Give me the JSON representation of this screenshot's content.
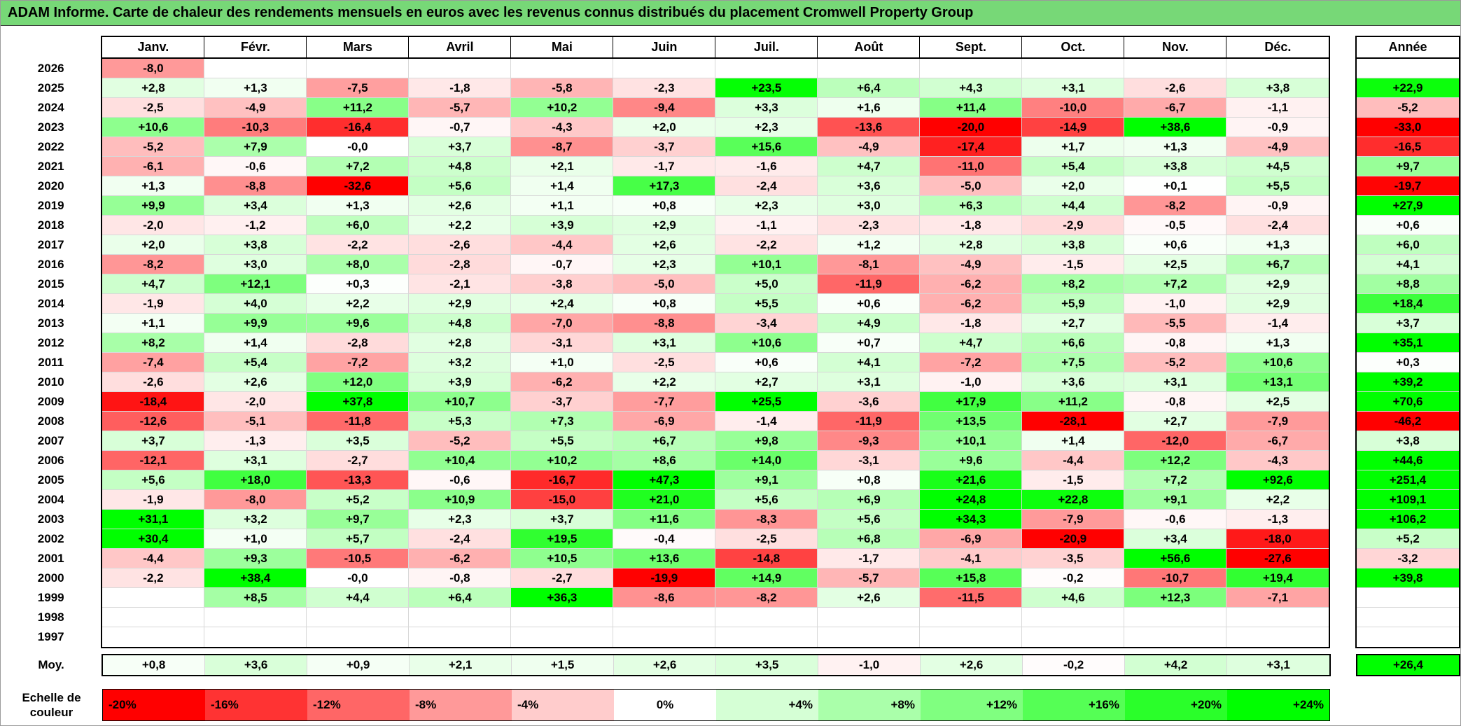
{
  "title": "ADAM Informe. Carte de chaleur des rendements mensuels en euros avec les revenus connus distribués du placement Cromwell Property Group",
  "chart_data": {
    "type": "heatmap",
    "unit": "%",
    "columns": [
      "Janv.",
      "Févr.",
      "Mars",
      "Avril",
      "Mai",
      "Juin",
      "Juil.",
      "Août",
      "Sept.",
      "Oct.",
      "Nov.",
      "Déc."
    ],
    "annee_header": "Année",
    "rows": [
      {
        "year": "2026",
        "cells": [
          "-8,0",
          "",
          "",
          "",
          "",
          "",
          "",
          "",
          "",
          "",
          "",
          ""
        ],
        "annee": ""
      },
      {
        "year": "2025",
        "cells": [
          "+2,8",
          "+1,3",
          "-7,5",
          "-1,8",
          "-5,8",
          "-2,3",
          "+23,5",
          "+6,4",
          "+4,3",
          "+3,1",
          "-2,6",
          "+3,8"
        ],
        "annee": "+22,9"
      },
      {
        "year": "2024",
        "cells": [
          "-2,5",
          "-4,9",
          "+11,2",
          "-5,7",
          "+10,2",
          "-9,4",
          "+3,3",
          "+1,6",
          "+11,4",
          "-10,0",
          "-6,7",
          "-1,1"
        ],
        "annee": "-5,2"
      },
      {
        "year": "2023",
        "cells": [
          "+10,6",
          "-10,3",
          "-16,4",
          "-0,7",
          "-4,3",
          "+2,0",
          "+2,3",
          "-13,6",
          "-20,0",
          "-14,9",
          "+38,6",
          "-0,9"
        ],
        "annee": "-33,0"
      },
      {
        "year": "2022",
        "cells": [
          "-5,2",
          "+7,9",
          "-0,0",
          "+3,7",
          "-8,7",
          "-3,7",
          "+15,6",
          "-4,9",
          "-17,4",
          "+1,7",
          "+1,3",
          "-4,9"
        ],
        "annee": "-16,5"
      },
      {
        "year": "2021",
        "cells": [
          "-6,1",
          "-0,6",
          "+7,2",
          "+4,8",
          "+2,1",
          "-1,7",
          "-1,6",
          "+4,7",
          "-11,0",
          "+5,4",
          "+3,8",
          "+4,5"
        ],
        "annee": "+9,7"
      },
      {
        "year": "2020",
        "cells": [
          "+1,3",
          "-8,8",
          "-32,6",
          "+5,6",
          "+1,4",
          "+17,3",
          "-2,4",
          "+3,6",
          "-5,0",
          "+2,0",
          "+0,1",
          "+5,5"
        ],
        "annee": "-19,7"
      },
      {
        "year": "2019",
        "cells": [
          "+9,9",
          "+3,4",
          "+1,3",
          "+2,6",
          "+1,1",
          "+0,8",
          "+2,3",
          "+3,0",
          "+6,3",
          "+4,4",
          "-8,2",
          "-0,9"
        ],
        "annee": "+27,9"
      },
      {
        "year": "2018",
        "cells": [
          "-2,0",
          "-1,2",
          "+6,0",
          "+2,2",
          "+3,9",
          "+2,9",
          "-1,1",
          "-2,3",
          "-1,8",
          "-2,9",
          "-0,5",
          "-2,4"
        ],
        "annee": "+0,6"
      },
      {
        "year": "2017",
        "cells": [
          "+2,0",
          "+3,8",
          "-2,2",
          "-2,6",
          "-4,4",
          "+2,6",
          "-2,2",
          "+1,2",
          "+2,8",
          "+3,8",
          "+0,6",
          "+1,3"
        ],
        "annee": "+6,0"
      },
      {
        "year": "2016",
        "cells": [
          "-8,2",
          "+3,0",
          "+8,0",
          "-2,8",
          "-0,7",
          "+2,3",
          "+10,1",
          "-8,1",
          "-4,9",
          "-1,5",
          "+2,5",
          "+6,7"
        ],
        "annee": "+4,1"
      },
      {
        "year": "2015",
        "cells": [
          "+4,7",
          "+12,1",
          "+0,3",
          "-2,1",
          "-3,8",
          "-5,0",
          "+5,0",
          "-11,9",
          "-6,2",
          "+8,2",
          "+7,2",
          "+2,9"
        ],
        "annee": "+8,8"
      },
      {
        "year": "2014",
        "cells": [
          "-1,9",
          "+4,0",
          "+2,2",
          "+2,9",
          "+2,4",
          "+0,8",
          "+5,5",
          "+0,6",
          "-6,2",
          "+5,9",
          "-1,0",
          "+2,9"
        ],
        "annee": "+18,4"
      },
      {
        "year": "2013",
        "cells": [
          "+1,1",
          "+9,9",
          "+9,6",
          "+4,8",
          "-7,0",
          "-8,8",
          "-3,4",
          "+4,9",
          "-1,8",
          "+2,7",
          "-5,5",
          "-1,4"
        ],
        "annee": "+3,7"
      },
      {
        "year": "2012",
        "cells": [
          "+8,2",
          "+1,4",
          "-2,8",
          "+2,8",
          "-3,1",
          "+3,1",
          "+10,6",
          "+0,7",
          "+4,7",
          "+6,6",
          "-0,8",
          "+1,3"
        ],
        "annee": "+35,1"
      },
      {
        "year": "2011",
        "cells": [
          "-7,4",
          "+5,4",
          "-7,2",
          "+3,2",
          "+1,0",
          "-2,5",
          "+0,6",
          "+4,1",
          "-7,2",
          "+7,5",
          "-5,2",
          "+10,6"
        ],
        "annee": "+0,3"
      },
      {
        "year": "2010",
        "cells": [
          "-2,6",
          "+2,6",
          "+12,0",
          "+3,9",
          "-6,2",
          "+2,2",
          "+2,7",
          "+3,1",
          "-1,0",
          "+3,6",
          "+3,1",
          "+13,1"
        ],
        "annee": "+39,2"
      },
      {
        "year": "2009",
        "cells": [
          "-18,4",
          "-2,0",
          "+37,8",
          "+10,7",
          "-3,7",
          "-7,7",
          "+25,5",
          "-3,6",
          "+17,9",
          "+11,2",
          "-0,8",
          "+2,5"
        ],
        "annee": "+70,6"
      },
      {
        "year": "2008",
        "cells": [
          "-12,6",
          "-5,1",
          "-11,8",
          "+5,3",
          "+7,3",
          "-6,9",
          "-1,4",
          "-11,9",
          "+13,5",
          "-28,1",
          "+2,7",
          "-7,9"
        ],
        "annee": "-46,2"
      },
      {
        "year": "2007",
        "cells": [
          "+3,7",
          "-1,3",
          "+3,5",
          "-5,2",
          "+5,5",
          "+6,7",
          "+9,8",
          "-9,3",
          "+10,1",
          "+1,4",
          "-12,0",
          "-6,7"
        ],
        "annee": "+3,8"
      },
      {
        "year": "2006",
        "cells": [
          "-12,1",
          "+3,1",
          "-2,7",
          "+10,4",
          "+10,2",
          "+8,6",
          "+14,0",
          "-3,1",
          "+9,6",
          "-4,4",
          "+12,2",
          "-4,3"
        ],
        "annee": "+44,6"
      },
      {
        "year": "2005",
        "cells": [
          "+5,6",
          "+18,0",
          "-13,3",
          "-0,6",
          "-16,7",
          "+47,3",
          "+9,1",
          "+0,8",
          "+21,6",
          "-1,5",
          "+7,2",
          "+92,6"
        ],
        "annee": "+251,4"
      },
      {
        "year": "2004",
        "cells": [
          "-1,9",
          "-8,0",
          "+5,2",
          "+10,9",
          "-15,0",
          "+21,0",
          "+5,6",
          "+6,9",
          "+24,8",
          "+22,8",
          "+9,1",
          "+2,2"
        ],
        "annee": "+109,1"
      },
      {
        "year": "2003",
        "cells": [
          "+31,1",
          "+3,2",
          "+9,7",
          "+2,3",
          "+3,7",
          "+11,6",
          "-8,3",
          "+5,6",
          "+34,3",
          "-7,9",
          "-0,6",
          "-1,3"
        ],
        "annee": "+106,2"
      },
      {
        "year": "2002",
        "cells": [
          "+30,4",
          "+1,0",
          "+5,7",
          "-2,4",
          "+19,5",
          "-0,4",
          "-2,5",
          "+6,8",
          "-6,9",
          "-20,9",
          "+3,4",
          "-18,0"
        ],
        "annee": "+5,2"
      },
      {
        "year": "2001",
        "cells": [
          "-4,4",
          "+9,3",
          "-10,5",
          "-6,2",
          "+10,5",
          "+13,6",
          "-14,8",
          "-1,7",
          "-4,1",
          "-3,5",
          "+56,6",
          "-27,6"
        ],
        "annee": "-3,2"
      },
      {
        "year": "2000",
        "cells": [
          "-2,2",
          "+38,4",
          "-0,0",
          "-0,8",
          "-2,7",
          "-19,9",
          "+14,9",
          "-5,7",
          "+15,8",
          "-0,2",
          "-10,7",
          "+19,4"
        ],
        "annee": "+39,8"
      },
      {
        "year": "1999",
        "cells": [
          "",
          "+8,5",
          "+4,4",
          "+6,4",
          "+36,3",
          "-8,6",
          "-8,2",
          "+2,6",
          "-11,5",
          "+4,6",
          "+12,3",
          "-7,1"
        ],
        "annee": ""
      },
      {
        "year": "1998",
        "cells": [
          "",
          "",
          "",
          "",
          "",
          "",
          "",
          "",
          "",
          "",
          "",
          ""
        ],
        "annee": ""
      },
      {
        "year": "1997",
        "cells": [
          "",
          "",
          "",
          "",
          "",
          "",
          "",
          "",
          "",
          "",
          "",
          ""
        ],
        "annee": ""
      }
    ],
    "avg_row": {
      "label": "Moy.",
      "cells": [
        "+0,8",
        "+3,6",
        "+0,9",
        "+2,1",
        "+1,5",
        "+2,6",
        "+3,5",
        "-1,0",
        "+2,6",
        "-0,2",
        "+4,2",
        "+3,1"
      ],
      "annee": "+26,4"
    },
    "color_scale": {
      "negative_limit": -20,
      "positive_limit": 24,
      "negative_color": "#FF0000",
      "zero_color": "#FFFFFF",
      "positive_color": "#00FF00"
    }
  },
  "legend": {
    "label": "Echelle de couleur",
    "ticks": [
      {
        "label": "-20%",
        "value": -20
      },
      {
        "label": "-16%",
        "value": -16
      },
      {
        "label": "-12%",
        "value": -12
      },
      {
        "label": "-8%",
        "value": -8
      },
      {
        "label": "-4%",
        "value": -4
      },
      {
        "label": "0%",
        "value": 0
      },
      {
        "label": "+4%",
        "value": 4
      },
      {
        "label": "+8%",
        "value": 8
      },
      {
        "label": "+12%",
        "value": 12
      },
      {
        "label": "+16%",
        "value": 16
      },
      {
        "label": "+20%",
        "value": 20
      },
      {
        "label": "+24%",
        "value": 24
      }
    ]
  },
  "theme": {
    "title_bg": "#77D877",
    "grid_line": "#D8D8D8",
    "table_border": "#000000"
  }
}
